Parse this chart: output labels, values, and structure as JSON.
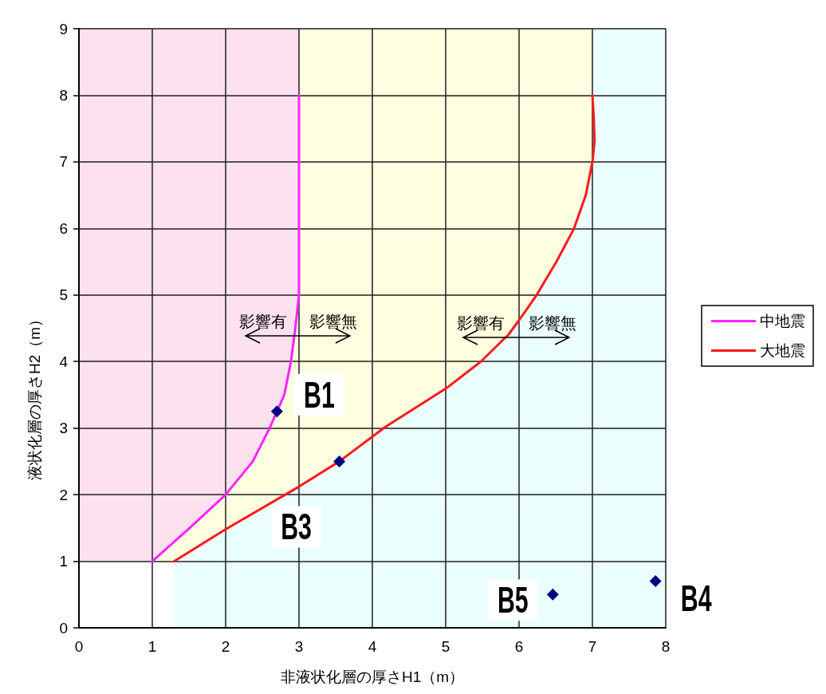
{
  "chart_data": {
    "type": "line",
    "xlabel": "非液状化層の厚さH1（m）",
    "ylabel": "液状化層の厚さH2（m）",
    "xlim": [
      0,
      8
    ],
    "xticks": [
      0,
      1,
      2,
      3,
      4,
      5,
      6,
      7,
      8
    ],
    "ylim": [
      0,
      9
    ],
    "yticks": [
      0,
      1,
      2,
      3,
      4,
      5,
      6,
      7,
      8,
      9
    ],
    "grid": true,
    "legend": "right",
    "series": [
      {
        "type": "line",
        "color": "#fde1ee",
        "x": [
          0,
          1,
          1.51,
          2,
          2.37,
          2.6,
          2.7,
          2.8,
          2.89,
          2.95,
          3
        ],
        "values": [
          null,
          null,
          null,
          null,
          null,
          null,
          null,
          null,
          null,
          null,
          null
        ],
        "lower": [
          1,
          1,
          1.5,
          2,
          2.5,
          3,
          3.25,
          3.5,
          4,
          4.5,
          5
        ],
        "upper": [
          9,
          9,
          9,
          9,
          9,
          9,
          9,
          9,
          9,
          9,
          9
        ]
      },
      {
        "type": "line",
        "color": "#fefee0",
        "x": [
          1,
          1.3,
          1.51,
          2,
          2.37,
          2.6,
          2.7,
          2.8,
          2.89,
          2.95,
          3,
          3,
          3.55,
          4.18,
          5.01,
          5.48,
          5.86,
          6,
          6.24,
          6.51,
          6.75,
          6.91,
          7
        ],
        "values": [
          null,
          null,
          null,
          null,
          null,
          null,
          null,
          null,
          null,
          null,
          null,
          null,
          null,
          null,
          null,
          null,
          null,
          null,
          null,
          null,
          null,
          null,
          null
        ],
        "lower": [
          1,
          1,
          1.14,
          1.48,
          1.72,
          1.86,
          1.93,
          1.99,
          2.05,
          2.09,
          2.12,
          2.12,
          2.5,
          3.02,
          3.6,
          4,
          4.41,
          4.62,
          5,
          5.5,
          6,
          6.5,
          7
        ],
        "upper": [
          1,
          1.29,
          1.5,
          2,
          2.5,
          3,
          3.25,
          3.5,
          4,
          4.5,
          5,
          9,
          9,
          9,
          9,
          9,
          9,
          9,
          9,
          9,
          9,
          9,
          9
        ]
      },
      {
        "type": "line",
        "color": "#ebfefe",
        "x": [
          1.3,
          2,
          3,
          3.55,
          4.18,
          5.01,
          5.48,
          5.86,
          6,
          6.24,
          6.51,
          6.75,
          6.91,
          7,
          7,
          8
        ],
        "values": [
          null,
          null,
          null,
          null,
          null,
          null,
          null,
          null,
          null,
          null,
          null,
          null,
          null,
          null,
          null,
          null
        ],
        "lower": [
          0,
          0,
          0,
          0,
          0,
          0,
          0,
          0,
          0,
          0,
          0,
          0,
          0,
          0,
          0,
          0
        ],
        "upper": [
          1,
          1.48,
          2.12,
          2.5,
          3.02,
          3.6,
          4,
          4.41,
          4.62,
          5,
          5.5,
          6,
          6.5,
          7,
          9,
          9
        ]
      },
      {
        "type": "line",
        "name": "中地震",
        "color": "#ff22ff",
        "x": [
          1,
          1.51,
          2,
          2.37,
          2.6,
          2.7,
          2.8,
          2.89,
          2.95,
          3,
          3
        ],
        "values": [
          1,
          1.5,
          2,
          2.5,
          3,
          3.25,
          3.5,
          4,
          4.5,
          5,
          8
        ]
      },
      {
        "type": "line",
        "name": "大地震",
        "color": "#ff1a1a",
        "x": [
          1.3,
          2,
          3,
          3.55,
          4.18,
          5.01,
          5.48,
          5.86,
          6,
          6.24,
          6.51,
          6.75,
          6.91,
          7,
          7.03,
          7.02,
          7
        ],
        "values": [
          1,
          1.48,
          2.12,
          2.5,
          3.02,
          3.6,
          4,
          4.41,
          4.62,
          5,
          5.5,
          6,
          6.5,
          7,
          7.3,
          7.64,
          8
        ]
      },
      {
        "type": "scatter",
        "color": "#000080",
        "marker": "diamond",
        "x": [
          2.7,
          3.55,
          6.46,
          7.86
        ],
        "values": [
          3.25,
          2.5,
          0.5,
          0.7
        ]
      }
    ],
    "annotations": [
      "影響有",
      "影響無",
      "影響有",
      "影響無",
      {
        "text": "B1",
        "x": 2.7,
        "y": 3.25
      },
      {
        "text": "B3",
        "x": 3.55,
        "y": 2.5
      },
      {
        "text": "B5",
        "x": 6.46,
        "y": 0.5
      },
      {
        "text": "B4",
        "x": 7.86,
        "y": 0.7
      }
    ]
  }
}
